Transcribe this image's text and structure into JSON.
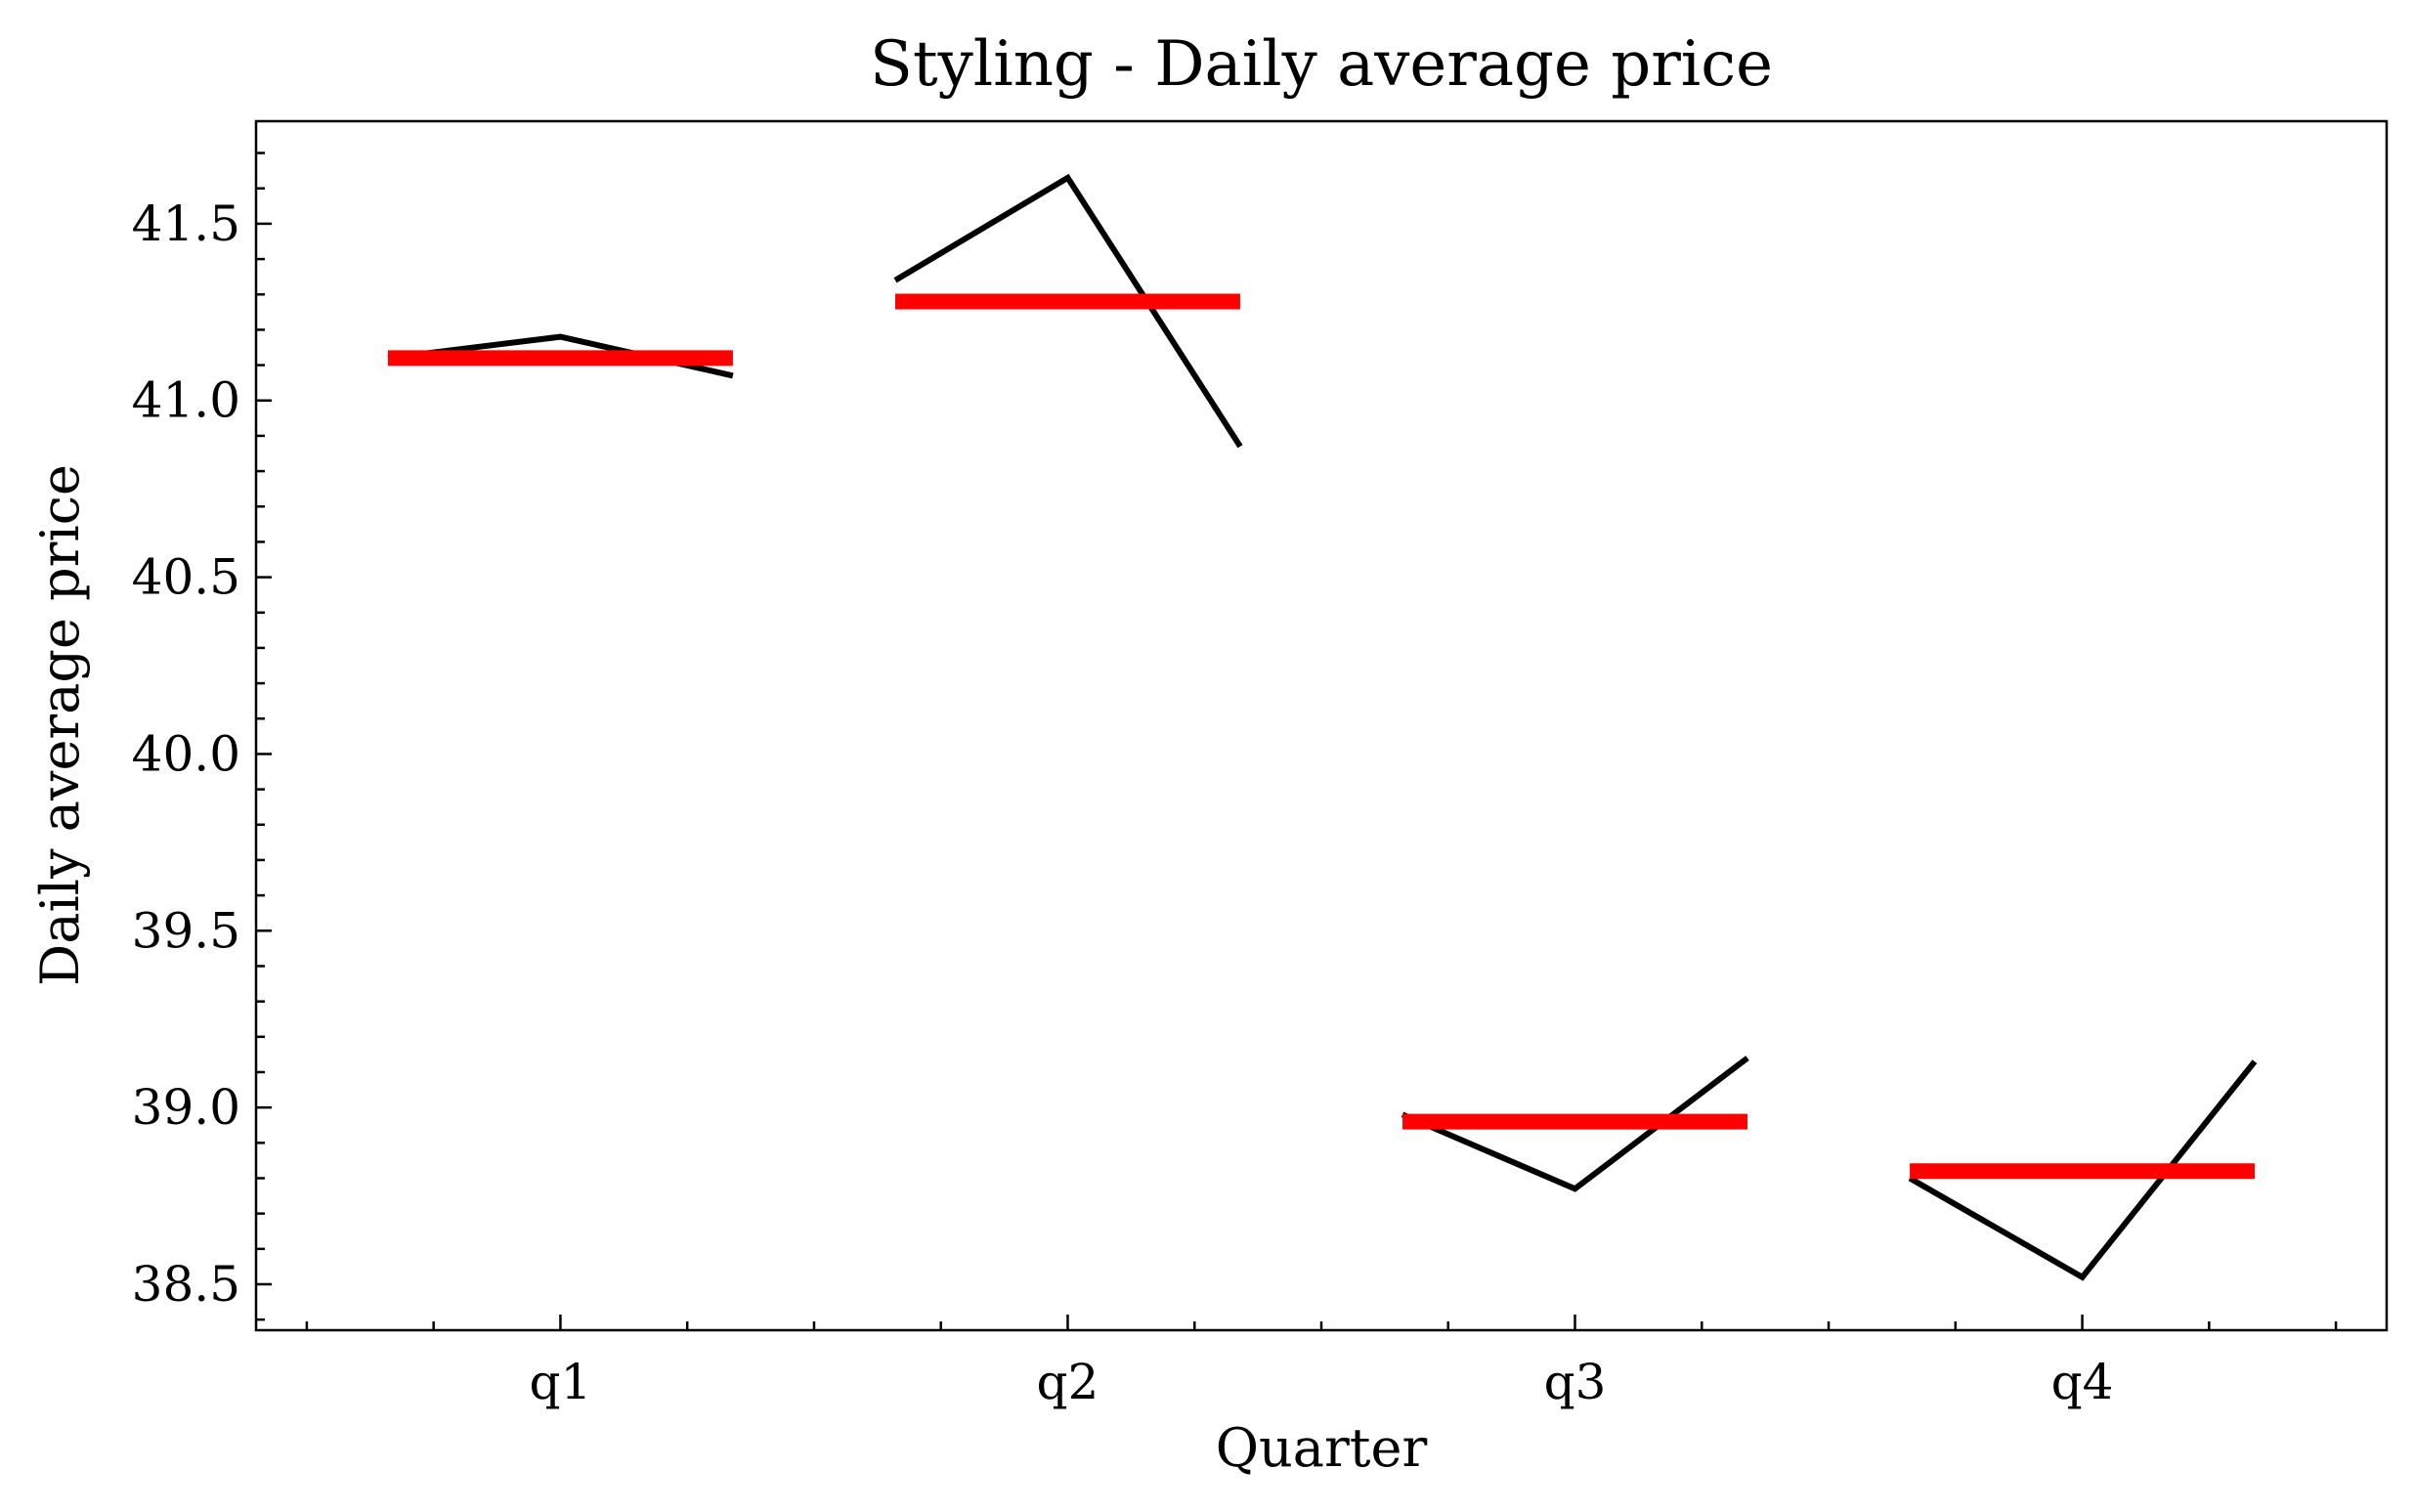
{
  "chart_data": {
    "type": "line",
    "title": "Styling - Daily average price",
    "xlabel": "Quarter",
    "ylabel": "Daily average price",
    "categories": [
      "q1",
      "q2",
      "q3",
      "q4"
    ],
    "ylim": [
      38.37,
      41.79
    ],
    "yticks": [
      "38.5",
      "39.0",
      "39.5",
      "40.0",
      "40.5",
      "41.0",
      "41.5"
    ],
    "grid": false,
    "series": [
      {
        "kind": "subseries",
        "color": "#000000",
        "groups": [
          {
            "category": "q1",
            "values": [
              41.12,
              41.18,
              41.07
            ]
          },
          {
            "category": "q2",
            "values": [
              41.34,
              41.63,
              40.87
            ]
          },
          {
            "category": "q3",
            "values": [
              38.98,
              38.77,
              39.14
            ]
          },
          {
            "category": "q4",
            "values": [
              38.8,
              38.52,
              39.13
            ]
          }
        ]
      },
      {
        "kind": "mean",
        "color": "#ff0000",
        "values": [
          41.12,
          41.28,
          38.96,
          38.82
        ]
      }
    ]
  }
}
